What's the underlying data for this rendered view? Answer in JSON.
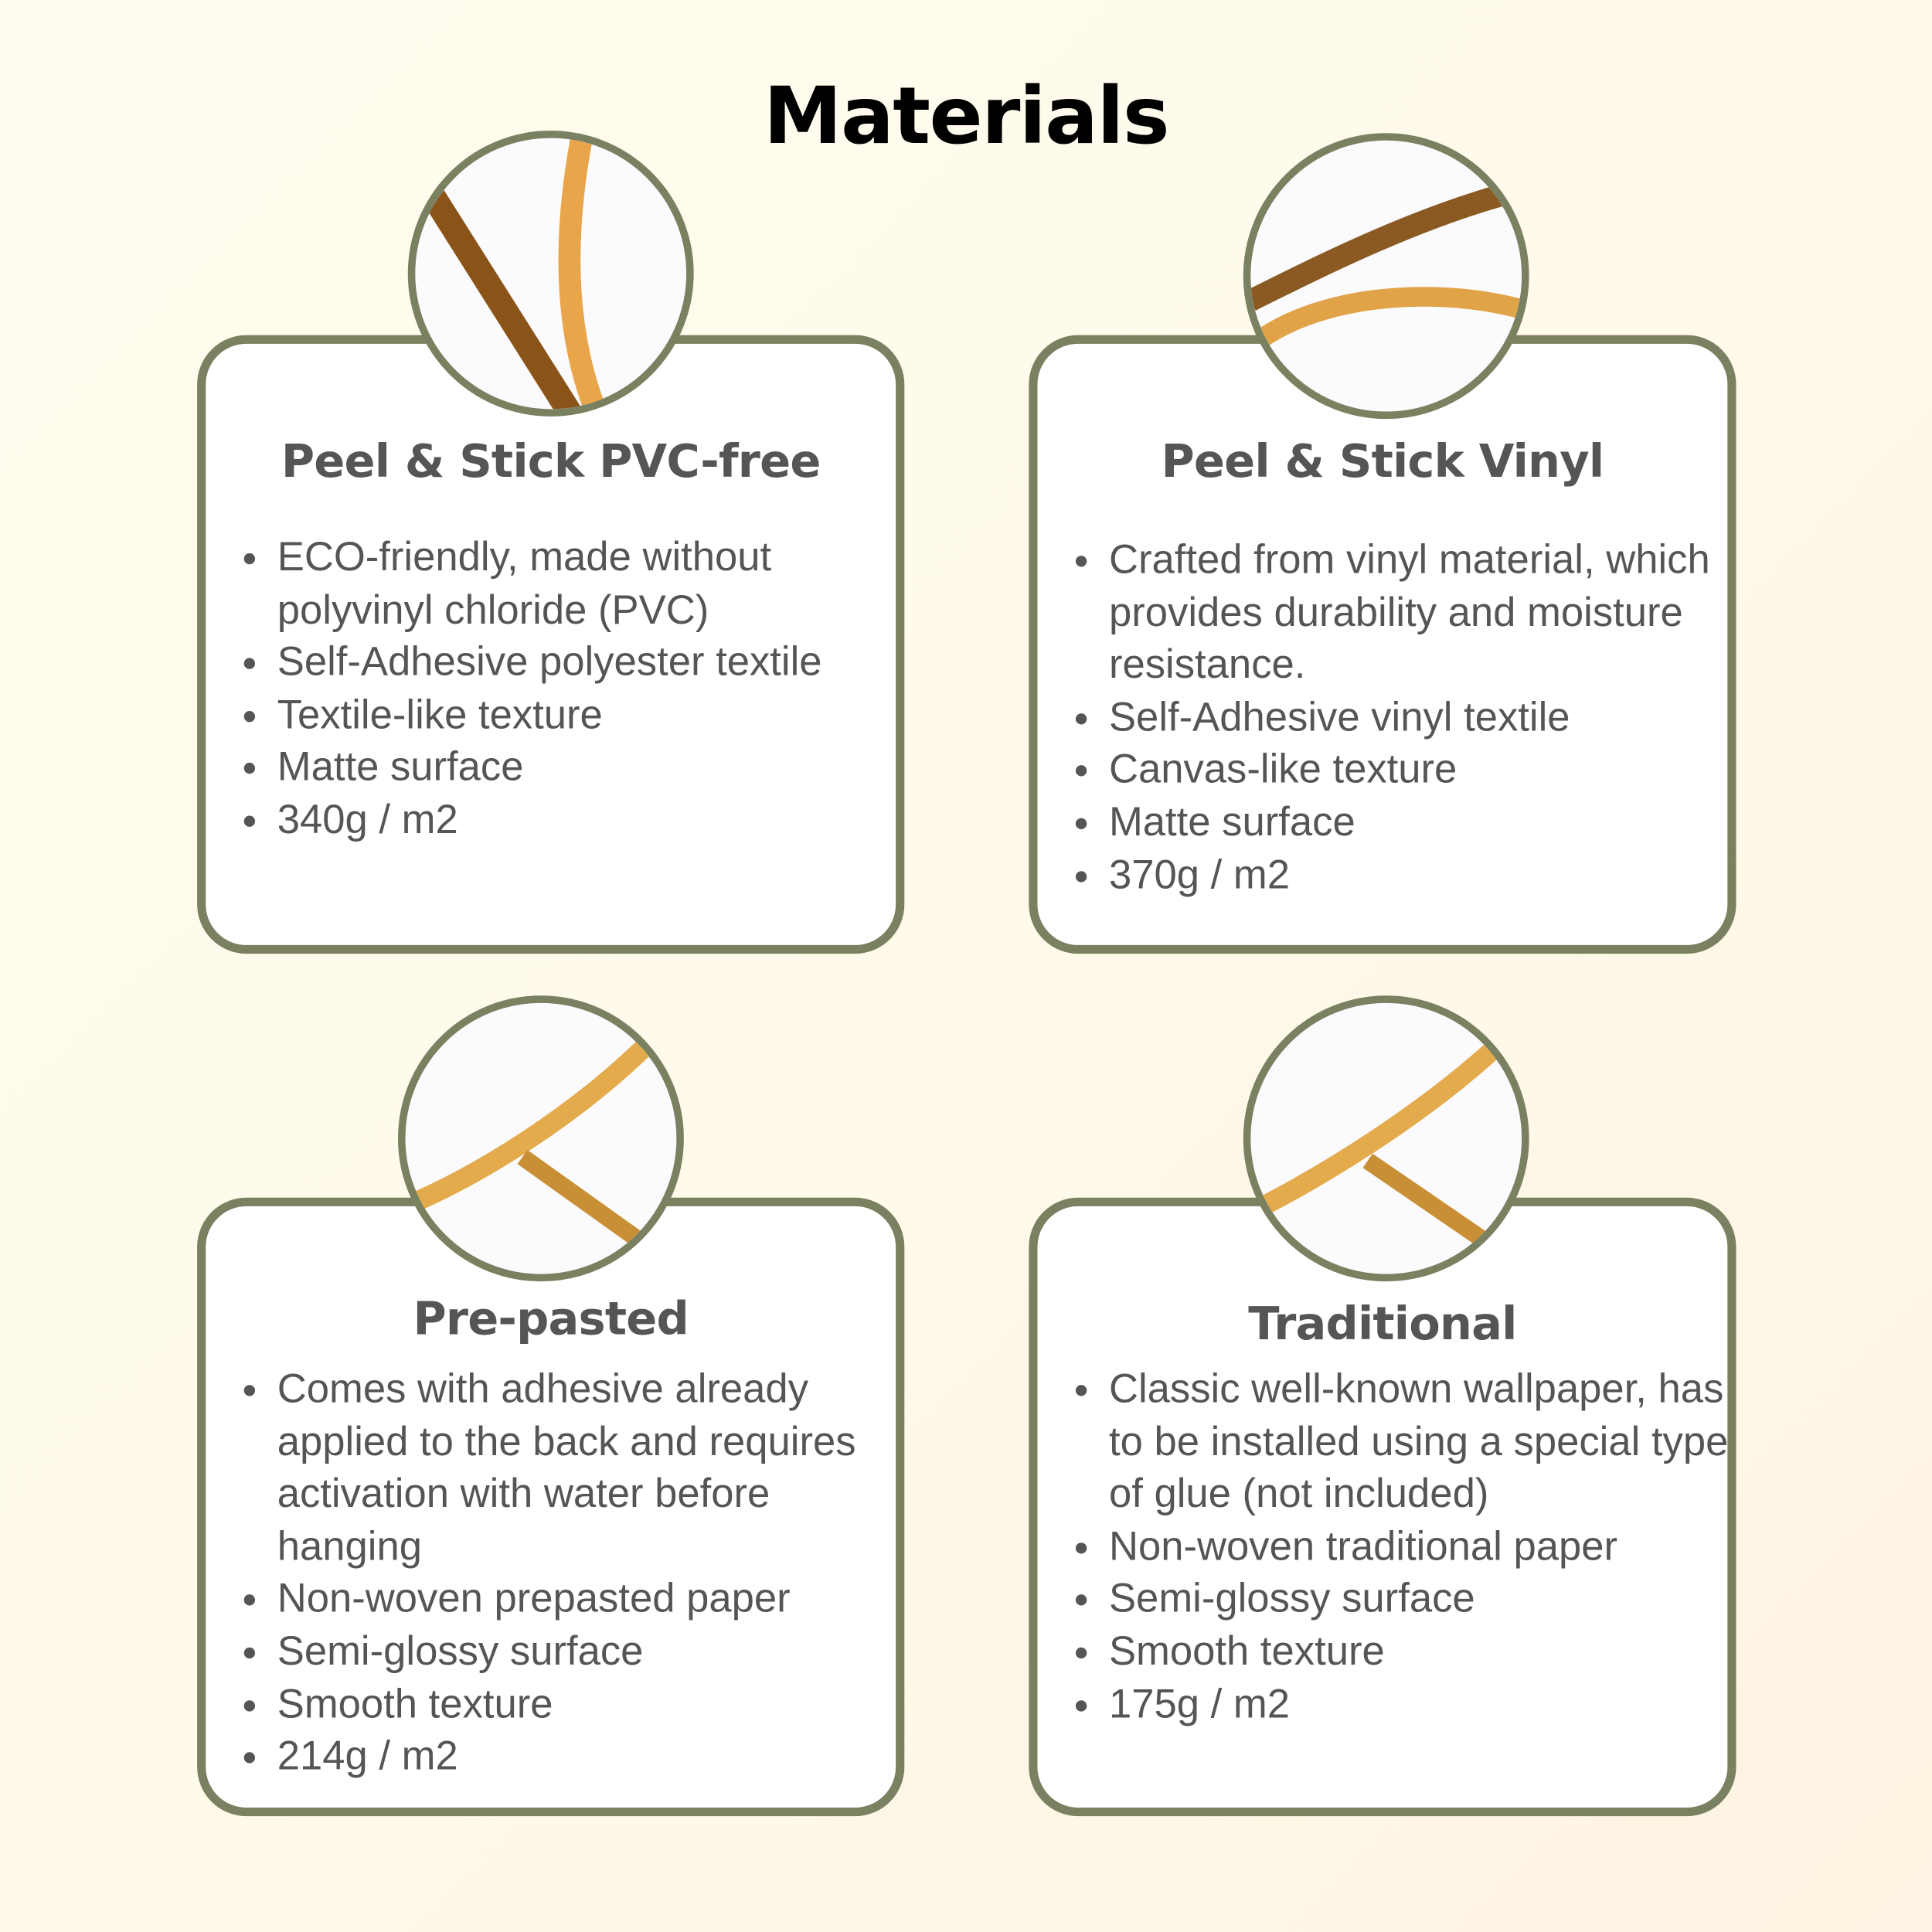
{
  "title": "Materials",
  "colors": {
    "border": "#7a8160",
    "text": "#555555",
    "background": "#fffbee"
  },
  "cards": [
    {
      "title": "Peel & Stick PVC-free",
      "image": "fabric-texture-swatch",
      "items": [
        "ECO-friendly, made without polyvinyl chloride (PVC)",
        "Self-Adhesive polyester textile",
        "Textile-like texture",
        "Matte surface",
        "340g / m2"
      ]
    },
    {
      "title": "Peel & Stick Vinyl",
      "image": "canvas-texture-swatch",
      "items": [
        "Crafted from vinyl material, which provides durability and moisture resistance.",
        "Self-Adhesive vinyl textile",
        "Canvas-like texture",
        "Matte surface",
        "370g / m2"
      ]
    },
    {
      "title": "Pre-pasted",
      "image": "smooth-paper-swatch",
      "items": [
        "Comes with adhesive already applied to the back and requires activation with water before hanging",
        "Non-woven prepasted paper",
        "Semi-glossy surface",
        "Smooth texture",
        "214g / m2"
      ]
    },
    {
      "title": "Traditional",
      "image": "smooth-paper-swatch",
      "items": [
        "Classic well-known wallpaper, has to be installed using a special type of glue (not included)",
        "Non-woven traditional paper",
        "Semi-glossy surface",
        "Smooth texture",
        "175g / m2"
      ]
    }
  ]
}
